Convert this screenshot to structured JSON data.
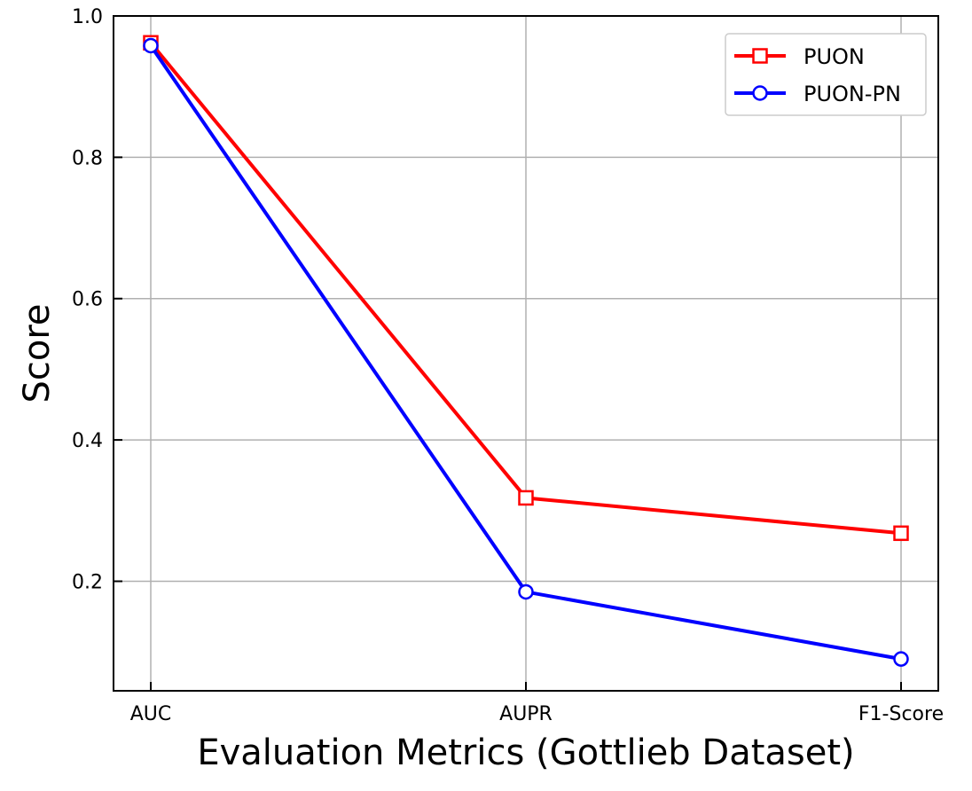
{
  "chart_data": {
    "type": "line",
    "categories": [
      "AUC",
      "AUPR",
      "F1-Score"
    ],
    "xlabel": "Evaluation Metrics (Gottlieb Dataset)",
    "ylabel": "Score",
    "ylim": [
      0.045,
      1.0
    ],
    "yticks": [
      0.2,
      0.4,
      0.6,
      0.8,
      1.0
    ],
    "ytick_labels": [
      "0.2",
      "0.4",
      "0.6",
      "0.8",
      "1.0"
    ],
    "grid": true,
    "legend_position": "top-right",
    "series": [
      {
        "name": "PUON",
        "values": [
          0.962,
          0.318,
          0.268
        ],
        "color": "#ff0000",
        "marker": "square"
      },
      {
        "name": "PUON-PN",
        "values": [
          0.958,
          0.185,
          0.09
        ],
        "color": "#0000ff",
        "marker": "circle"
      }
    ]
  }
}
